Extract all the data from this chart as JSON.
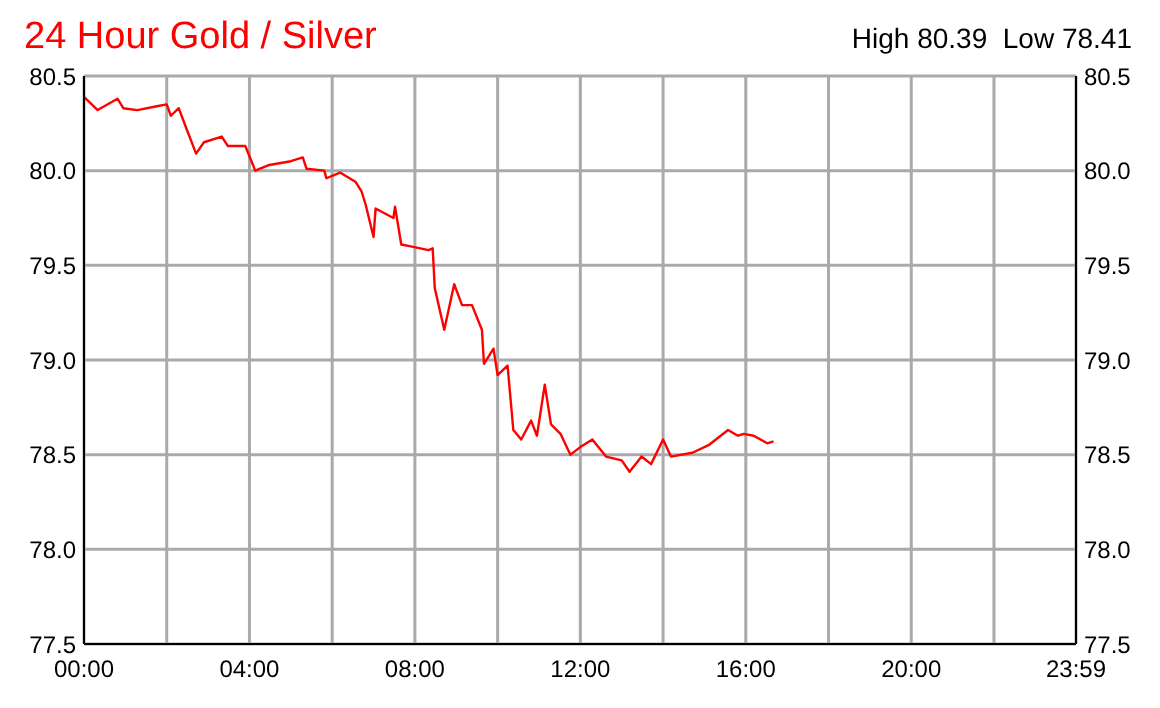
{
  "chart_data": {
    "type": "line",
    "title": "24 Hour Gold / Silver",
    "annotations": [
      "High 80.39  Low 78.41"
    ],
    "xlim": [
      0,
      23.983
    ],
    "xticks": [
      {
        "value": 0,
        "label": "00:00"
      },
      {
        "value": 2,
        "label": null
      },
      {
        "value": 4,
        "label": "04:00"
      },
      {
        "value": 6,
        "label": null
      },
      {
        "value": 8,
        "label": "08:00"
      },
      {
        "value": 10,
        "label": null
      },
      {
        "value": 12,
        "label": "12:00"
      },
      {
        "value": 14,
        "label": null
      },
      {
        "value": 16,
        "label": "16:00"
      },
      {
        "value": 18,
        "label": null
      },
      {
        "value": 20,
        "label": "20:00"
      },
      {
        "value": 22,
        "label": null
      },
      {
        "value": 23.983,
        "label": "23:59"
      }
    ],
    "ylim": [
      77.5,
      80.5
    ],
    "yticks": [
      77.5,
      {
        "value": 78,
        "label": "78.0"
      },
      78.5,
      {
        "value": 79,
        "label": "79.0"
      },
      79.5,
      {
        "value": 80,
        "label": "80.0"
      },
      80.5
    ],
    "y2lim": [
      77.5,
      80.5
    ],
    "y2ticks": [
      77.5,
      {
        "value": 78,
        "label": "78.0"
      },
      78.5,
      {
        "value": 79,
        "label": "79.0"
      },
      79.5,
      {
        "value": 80,
        "label": "80.0"
      },
      80.5
    ],
    "grid": true,
    "marker": "none",
    "line_style": "solid",
    "series": [
      {
        "color": "#ff0000",
        "x": [
          0,
          0.33,
          0.81,
          0.95,
          1.29,
          1.76,
          2,
          2.1,
          2.29,
          2.48,
          2.71,
          2.9,
          3.33,
          3.48,
          3.9,
          4.14,
          4.48,
          5,
          5.29,
          5.38,
          5.81,
          5.86,
          6.19,
          6.57,
          6.71,
          6.81,
          7,
          7.05,
          7.48,
          7.52,
          7.67,
          7.9,
          8.33,
          8.43,
          8.48,
          8.71,
          8.95,
          9.14,
          9.38,
          9.62,
          9.67,
          9.9,
          10,
          10.24,
          10.38,
          10.57,
          10.81,
          10.95,
          11.14,
          11.29,
          11.52,
          11.76,
          12,
          12.29,
          12.62,
          13,
          13.19,
          13.48,
          13.71,
          14,
          14.19,
          14.71,
          15.1,
          15.57,
          15.81,
          15.95,
          16.19,
          16.52,
          16.67
        ],
        "values": [
          80.39,
          80.32,
          80.38,
          80.33,
          80.32,
          80.34,
          80.35,
          80.29,
          80.33,
          80.22,
          80.09,
          80.15,
          80.18,
          80.13,
          80.13,
          80.0,
          80.03,
          80.05,
          80.07,
          80.01,
          80.0,
          79.96,
          79.99,
          79.94,
          79.89,
          79.82,
          79.65,
          79.8,
          79.75,
          79.81,
          79.61,
          79.6,
          79.58,
          79.59,
          79.38,
          79.16,
          79.4,
          79.29,
          79.29,
          79.16,
          78.98,
          79.06,
          78.92,
          78.97,
          78.63,
          78.58,
          78.68,
          78.6,
          78.87,
          78.66,
          78.61,
          78.5,
          78.54,
          78.58,
          78.49,
          78.47,
          78.41,
          78.49,
          78.45,
          78.58,
          78.49,
          78.51,
          78.55,
          78.63,
          78.6,
          78.61,
          78.6,
          78.56,
          78.57
        ]
      }
    ]
  }
}
